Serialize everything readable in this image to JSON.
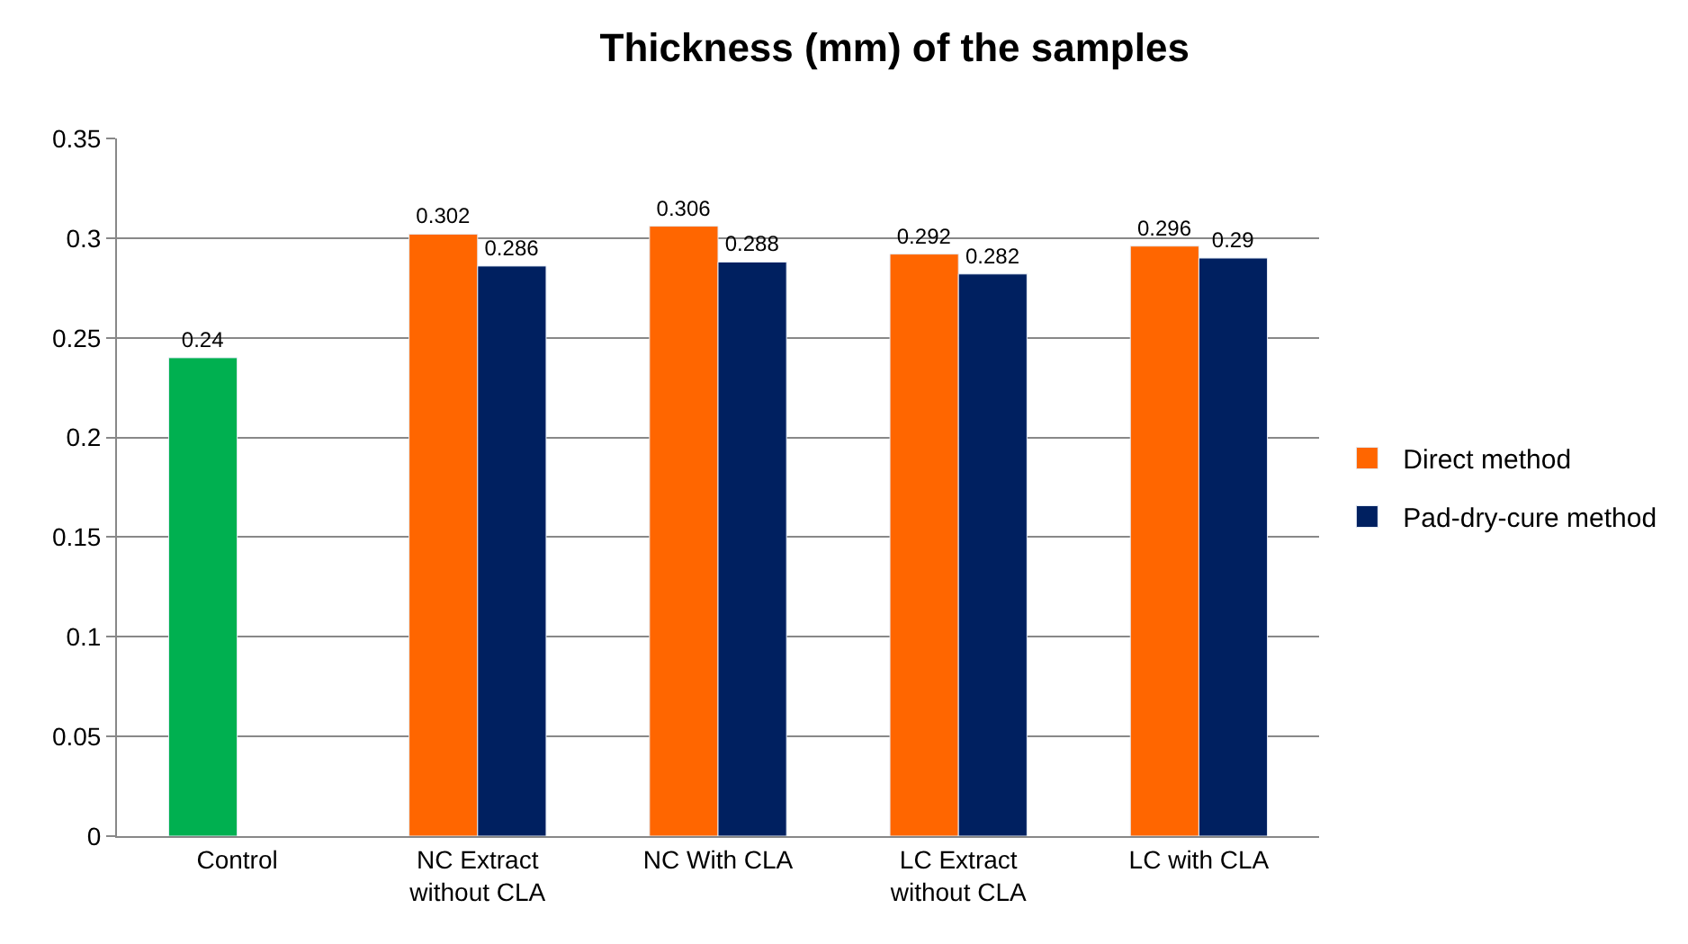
{
  "chart_data": {
    "type": "bar",
    "title": "Thickness (mm) of the samples",
    "categories": [
      "Control",
      "NC Extract without CLA",
      "NC With CLA",
      "LC Extract without CLA",
      "LC with CLA"
    ],
    "series": [
      {
        "name": "Direct method",
        "color": "#ff6600",
        "colors": [
          "#00b050",
          "#ff6600",
          "#ff6600",
          "#ff6600",
          "#ff6600"
        ],
        "values": [
          0.24,
          0.302,
          0.306,
          0.292,
          0.296
        ]
      },
      {
        "name": "Pad-dry-cure method",
        "color": "#002060",
        "values": [
          null,
          0.286,
          0.288,
          0.282,
          0.29
        ]
      }
    ],
    "ylim": [
      0,
      0.35
    ],
    "yticks": [
      0,
      0.05,
      0.1,
      0.15,
      0.2,
      0.25,
      0.3,
      0.35
    ],
    "grid": "y",
    "legend": "right",
    "data_labels": true
  }
}
